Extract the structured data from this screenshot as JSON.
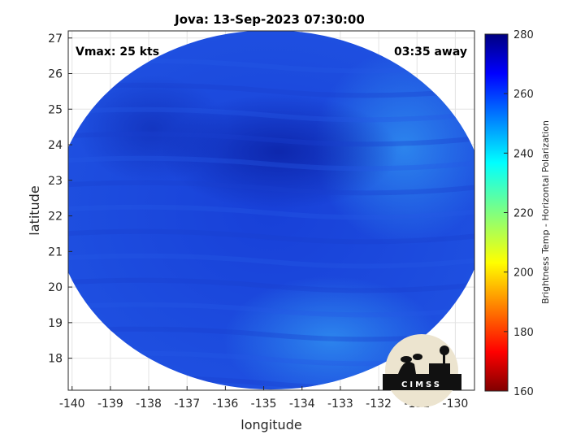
{
  "chart_data": {
    "type": "heatmap",
    "title": "Jova: 13-Sep-2023 07:30:00",
    "annotations": {
      "left": "Vmax: 25 kts",
      "right": "03:35 away"
    },
    "xlabel": "longitude",
    "ylabel": "latitude",
    "xlim": [
      -140.1,
      -129.5
    ],
    "ylim": [
      17.1,
      27.2
    ],
    "xticks": [
      -140,
      -139,
      -138,
      -137,
      -136,
      -135,
      -134,
      -133,
      -132,
      -131,
      -130
    ],
    "yticks": [
      18,
      19,
      20,
      21,
      22,
      23,
      24,
      25,
      26,
      27
    ],
    "grid": true,
    "swath": {
      "center_lon": -134.82,
      "center_lat": 22.17,
      "radius_deg_lat": 5.05,
      "radius_deg_lon": 5.63
    },
    "field": {
      "typical_value": 255,
      "darkest_value": 268,
      "darkest_center": [
        -134.6,
        23.8
      ],
      "warm_band_value": 245
    },
    "colorbar": {
      "label": "Brightness Temp - Horizontal Polarization",
      "min": 160,
      "max": 280,
      "ticks": [
        160,
        180,
        200,
        220,
        240,
        260,
        280
      ],
      "colormap": "jet"
    },
    "logo": {
      "text": "CIMSS"
    }
  }
}
